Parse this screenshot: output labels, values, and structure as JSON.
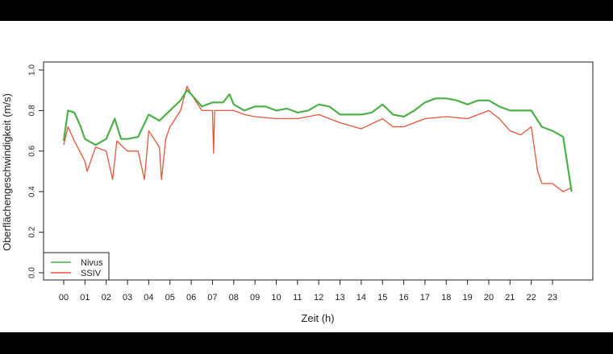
{
  "chart_data": {
    "type": "line",
    "xlabel": "Zeit (h)",
    "ylabel": "Oberflächengeschwindigkeit (m/s)",
    "xlim": [
      0,
      24
    ],
    "ylim": [
      0.0,
      1.0
    ],
    "x_tick_labels": [
      "00",
      "01",
      "02",
      "03",
      "04",
      "05",
      "06",
      "07",
      "08",
      "09",
      "10",
      "11",
      "12",
      "13",
      "14",
      "15",
      "16",
      "17",
      "18",
      "19",
      "20",
      "21",
      "22",
      "23"
    ],
    "y_tick_labels": [
      "0.0",
      "0.2",
      "0.4",
      "0.6",
      "0.8",
      "1.0"
    ],
    "legend_position": "bottom-left",
    "grid": false,
    "series": [
      {
        "name": "Nivus",
        "color": "#4daf4a",
        "x": [
          0,
          0.2,
          0.5,
          0.8,
          1.0,
          1.5,
          2.0,
          2.4,
          2.7,
          3.0,
          3.5,
          4.0,
          4.5,
          5.0,
          5.5,
          5.8,
          6.0,
          6.5,
          7.0,
          7.5,
          7.8,
          8.0,
          8.5,
          9,
          9.5,
          10,
          10.5,
          11,
          11.5,
          12,
          12.5,
          13,
          13.5,
          14,
          14.5,
          15,
          15.5,
          16,
          16.5,
          17,
          17.5,
          18,
          18.5,
          19,
          19.5,
          20,
          20.5,
          21,
          21.5,
          22,
          22.5,
          23,
          23.5,
          23.9
        ],
        "y": [
          0.65,
          0.8,
          0.79,
          0.72,
          0.66,
          0.63,
          0.66,
          0.76,
          0.66,
          0.66,
          0.67,
          0.78,
          0.75,
          0.8,
          0.85,
          0.9,
          0.88,
          0.82,
          0.84,
          0.84,
          0.88,
          0.83,
          0.8,
          0.82,
          0.82,
          0.8,
          0.81,
          0.79,
          0.8,
          0.83,
          0.82,
          0.78,
          0.78,
          0.78,
          0.79,
          0.83,
          0.78,
          0.77,
          0.8,
          0.84,
          0.86,
          0.86,
          0.85,
          0.83,
          0.85,
          0.85,
          0.82,
          0.8,
          0.8,
          0.8,
          0.72,
          0.7,
          0.67,
          0.4
        ]
      },
      {
        "name": "SSIV",
        "color": "#e8553a",
        "x": [
          0,
          0.2,
          0.5,
          1.0,
          1.1,
          1.5,
          2.0,
          2.3,
          2.5,
          3.0,
          3.5,
          3.8,
          4.0,
          4.5,
          4.6,
          4.8,
          5.0,
          5.5,
          5.8,
          6.0,
          6.5,
          7.0,
          7.05,
          7.1,
          7.5,
          8,
          8.5,
          9,
          10,
          11,
          12,
          13,
          14,
          15,
          15.5,
          16,
          17,
          18,
          19,
          20,
          20.5,
          21,
          21.5,
          22,
          22.3,
          22.5,
          23,
          23.5,
          23.9
        ],
        "y": [
          0.63,
          0.72,
          0.65,
          0.55,
          0.5,
          0.62,
          0.6,
          0.46,
          0.65,
          0.6,
          0.6,
          0.46,
          0.7,
          0.62,
          0.46,
          0.66,
          0.72,
          0.8,
          0.92,
          0.88,
          0.8,
          0.8,
          0.59,
          0.8,
          0.8,
          0.8,
          0.78,
          0.77,
          0.76,
          0.76,
          0.78,
          0.74,
          0.71,
          0.76,
          0.72,
          0.72,
          0.76,
          0.77,
          0.76,
          0.8,
          0.76,
          0.7,
          0.68,
          0.72,
          0.5,
          0.44,
          0.44,
          0.4,
          0.42
        ]
      }
    ]
  }
}
